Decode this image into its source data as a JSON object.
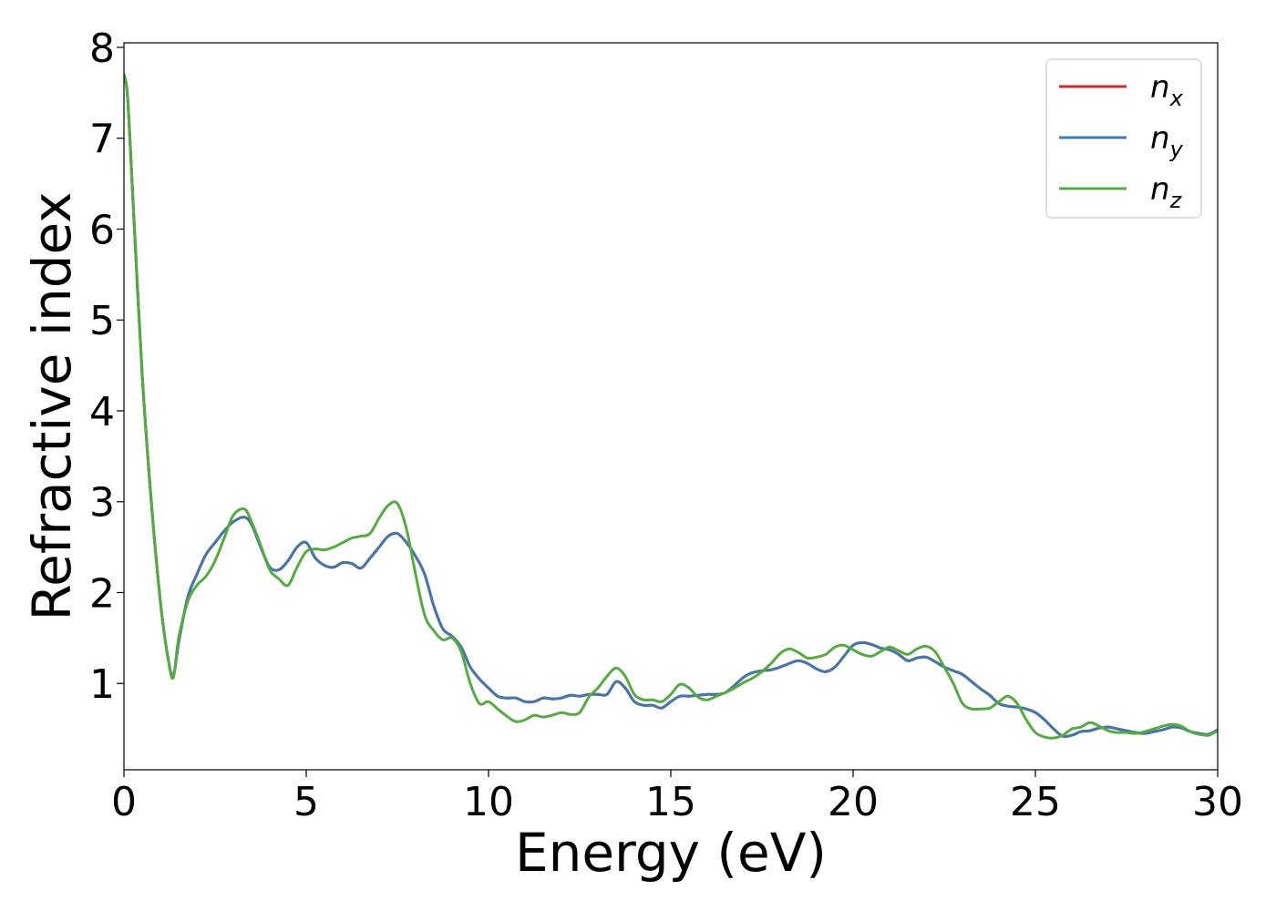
{
  "chart_data": {
    "type": "line",
    "title": "",
    "xlabel": "Energy (eV)",
    "ylabel": "Refractive index",
    "xlim": [
      0,
      30
    ],
    "ylim": [
      0.05,
      8.05
    ],
    "xticks": [
      0,
      5,
      10,
      15,
      20,
      25,
      30
    ],
    "yticks": [
      1,
      2,
      3,
      4,
      5,
      6,
      7,
      8
    ],
    "grid": false,
    "legend_position": "top-right",
    "series": [
      {
        "name": "n",
        "subscript": "x",
        "color": "#d62728",
        "x": [
          0,
          0.1,
          0.25,
          0.5,
          0.75,
          1.0,
          1.2,
          1.35,
          1.5,
          1.75,
          2.0,
          2.25,
          2.5,
          2.75,
          3.0,
          3.3,
          3.5,
          3.75,
          4.0,
          4.25,
          4.5,
          4.75,
          5.0,
          5.25,
          5.5,
          5.75,
          6.0,
          6.25,
          6.5,
          6.75,
          7.0,
          7.25,
          7.5,
          7.75,
          8.0,
          8.25,
          8.5,
          8.75,
          9.0,
          9.25,
          9.5,
          9.75,
          10.0,
          10.25,
          10.5,
          10.75,
          11.0,
          11.25,
          11.5,
          11.75,
          12.0,
          12.25,
          12.5,
          12.75,
          13.0,
          13.25,
          13.5,
          13.75,
          14.0,
          14.25,
          14.5,
          14.75,
          15.0,
          15.25,
          15.5,
          15.75,
          16.0,
          16.25,
          16.5,
          16.75,
          17.0,
          17.25,
          17.5,
          17.75,
          18.0,
          18.25,
          18.5,
          18.75,
          19.0,
          19.25,
          19.5,
          19.75,
          20.0,
          20.25,
          20.5,
          20.75,
          21.0,
          21.25,
          21.5,
          21.75,
          22.0,
          22.25,
          22.5,
          22.75,
          23.0,
          23.25,
          23.5,
          23.75,
          24.0,
          24.25,
          24.5,
          24.75,
          25.0,
          25.25,
          25.5,
          25.75,
          26.0,
          26.25,
          26.5,
          26.75,
          27.0,
          27.25,
          27.5,
          27.75,
          28.0,
          28.25,
          28.5,
          28.75,
          29.0,
          29.25,
          29.5,
          29.75,
          30.0
        ],
        "y": [
          7.7,
          7.45,
          6.3,
          4.4,
          3.0,
          1.9,
          1.3,
          1.08,
          1.45,
          1.95,
          2.2,
          2.42,
          2.55,
          2.68,
          2.78,
          2.83,
          2.75,
          2.5,
          2.28,
          2.25,
          2.35,
          2.5,
          2.55,
          2.38,
          2.3,
          2.28,
          2.33,
          2.32,
          2.27,
          2.38,
          2.5,
          2.62,
          2.65,
          2.55,
          2.4,
          2.2,
          1.85,
          1.6,
          1.52,
          1.4,
          1.18,
          1.05,
          0.95,
          0.86,
          0.84,
          0.84,
          0.8,
          0.8,
          0.84,
          0.83,
          0.84,
          0.87,
          0.86,
          0.88,
          0.88,
          0.88,
          1.02,
          0.95,
          0.8,
          0.76,
          0.76,
          0.73,
          0.8,
          0.86,
          0.86,
          0.87,
          0.88,
          0.88,
          0.9,
          0.98,
          1.07,
          1.12,
          1.14,
          1.15,
          1.18,
          1.22,
          1.25,
          1.22,
          1.16,
          1.13,
          1.18,
          1.3,
          1.42,
          1.45,
          1.43,
          1.39,
          1.37,
          1.32,
          1.25,
          1.28,
          1.29,
          1.24,
          1.18,
          1.14,
          1.1,
          1.02,
          0.94,
          0.87,
          0.78,
          0.75,
          0.74,
          0.72,
          0.68,
          0.6,
          0.5,
          0.42,
          0.43,
          0.47,
          0.48,
          0.51,
          0.52,
          0.5,
          0.48,
          0.46,
          0.45,
          0.47,
          0.49,
          0.52,
          0.51,
          0.47,
          0.45,
          0.44,
          0.49
        ]
      },
      {
        "name": "n",
        "subscript": "y",
        "color": "#4477aa",
        "x": [
          0,
          0.1,
          0.25,
          0.5,
          0.75,
          1.0,
          1.2,
          1.35,
          1.5,
          1.75,
          2.0,
          2.25,
          2.5,
          2.75,
          3.0,
          3.3,
          3.5,
          3.75,
          4.0,
          4.25,
          4.5,
          4.75,
          5.0,
          5.25,
          5.5,
          5.75,
          6.0,
          6.25,
          6.5,
          6.75,
          7.0,
          7.25,
          7.5,
          7.75,
          8.0,
          8.25,
          8.5,
          8.75,
          9.0,
          9.25,
          9.5,
          9.75,
          10.0,
          10.25,
          10.5,
          10.75,
          11.0,
          11.25,
          11.5,
          11.75,
          12.0,
          12.25,
          12.5,
          12.75,
          13.0,
          13.25,
          13.5,
          13.75,
          14.0,
          14.25,
          14.5,
          14.75,
          15.0,
          15.25,
          15.5,
          15.75,
          16.0,
          16.25,
          16.5,
          16.75,
          17.0,
          17.25,
          17.5,
          17.75,
          18.0,
          18.25,
          18.5,
          18.75,
          19.0,
          19.25,
          19.5,
          19.75,
          20.0,
          20.25,
          20.5,
          20.75,
          21.0,
          21.25,
          21.5,
          21.75,
          22.0,
          22.25,
          22.5,
          22.75,
          23.0,
          23.25,
          23.5,
          23.75,
          24.0,
          24.25,
          24.5,
          24.75,
          25.0,
          25.25,
          25.5,
          25.75,
          26.0,
          26.25,
          26.5,
          26.75,
          27.0,
          27.25,
          27.5,
          27.75,
          28.0,
          28.25,
          28.5,
          28.75,
          29.0,
          29.25,
          29.5,
          29.75,
          30.0
        ],
        "y": [
          7.7,
          7.45,
          6.3,
          4.4,
          3.0,
          1.9,
          1.3,
          1.08,
          1.45,
          1.95,
          2.2,
          2.42,
          2.55,
          2.68,
          2.78,
          2.83,
          2.75,
          2.5,
          2.28,
          2.25,
          2.35,
          2.5,
          2.55,
          2.38,
          2.3,
          2.28,
          2.33,
          2.32,
          2.27,
          2.38,
          2.5,
          2.62,
          2.65,
          2.55,
          2.4,
          2.2,
          1.85,
          1.6,
          1.52,
          1.4,
          1.18,
          1.05,
          0.95,
          0.86,
          0.84,
          0.84,
          0.8,
          0.8,
          0.84,
          0.83,
          0.84,
          0.87,
          0.86,
          0.88,
          0.88,
          0.88,
          1.02,
          0.95,
          0.8,
          0.76,
          0.76,
          0.73,
          0.8,
          0.86,
          0.86,
          0.87,
          0.88,
          0.88,
          0.9,
          0.98,
          1.07,
          1.12,
          1.14,
          1.15,
          1.18,
          1.22,
          1.25,
          1.22,
          1.16,
          1.13,
          1.18,
          1.3,
          1.42,
          1.45,
          1.43,
          1.39,
          1.37,
          1.32,
          1.25,
          1.28,
          1.29,
          1.24,
          1.18,
          1.14,
          1.1,
          1.02,
          0.94,
          0.87,
          0.78,
          0.75,
          0.74,
          0.72,
          0.68,
          0.6,
          0.5,
          0.42,
          0.43,
          0.47,
          0.48,
          0.51,
          0.52,
          0.5,
          0.48,
          0.46,
          0.45,
          0.47,
          0.49,
          0.52,
          0.51,
          0.47,
          0.45,
          0.44,
          0.49
        ]
      },
      {
        "name": "n",
        "subscript": "z",
        "color": "#55aa44",
        "x": [
          0,
          0.1,
          0.25,
          0.5,
          0.75,
          1.0,
          1.2,
          1.35,
          1.5,
          1.75,
          2.0,
          2.25,
          2.5,
          2.75,
          3.0,
          3.3,
          3.5,
          3.75,
          4.0,
          4.25,
          4.5,
          4.75,
          5.0,
          5.25,
          5.5,
          5.75,
          6.0,
          6.25,
          6.5,
          6.75,
          7.0,
          7.25,
          7.5,
          7.75,
          8.0,
          8.25,
          8.5,
          8.75,
          9.0,
          9.25,
          9.5,
          9.75,
          10.0,
          10.25,
          10.5,
          10.75,
          11.0,
          11.25,
          11.5,
          11.75,
          12.0,
          12.25,
          12.5,
          12.75,
          13.0,
          13.25,
          13.5,
          13.75,
          14.0,
          14.25,
          14.5,
          14.75,
          15.0,
          15.25,
          15.5,
          15.75,
          16.0,
          16.25,
          16.5,
          16.75,
          17.0,
          17.25,
          17.5,
          17.75,
          18.0,
          18.25,
          18.5,
          18.75,
          19.0,
          19.25,
          19.5,
          19.75,
          20.0,
          20.25,
          20.5,
          20.75,
          21.0,
          21.25,
          21.5,
          21.75,
          22.0,
          22.25,
          22.5,
          22.75,
          23.0,
          23.25,
          23.5,
          23.75,
          24.0,
          24.25,
          24.5,
          24.75,
          25.0,
          25.25,
          25.5,
          25.75,
          26.0,
          26.25,
          26.5,
          26.75,
          27.0,
          27.25,
          27.5,
          27.75,
          28.0,
          28.25,
          28.5,
          28.75,
          29.0,
          29.25,
          29.5,
          29.75,
          30.0
        ],
        "y": [
          7.7,
          7.45,
          6.3,
          4.4,
          3.0,
          1.9,
          1.3,
          1.06,
          1.5,
          1.9,
          2.08,
          2.18,
          2.35,
          2.6,
          2.85,
          2.92,
          2.78,
          2.52,
          2.25,
          2.15,
          2.08,
          2.28,
          2.45,
          2.48,
          2.47,
          2.5,
          2.55,
          2.6,
          2.62,
          2.65,
          2.82,
          2.96,
          2.98,
          2.7,
          2.2,
          1.75,
          1.58,
          1.48,
          1.5,
          1.35,
          1.0,
          0.78,
          0.8,
          0.72,
          0.64,
          0.58,
          0.6,
          0.65,
          0.63,
          0.65,
          0.68,
          0.66,
          0.68,
          0.85,
          0.95,
          1.08,
          1.17,
          1.08,
          0.88,
          0.82,
          0.82,
          0.8,
          0.88,
          0.99,
          0.95,
          0.85,
          0.82,
          0.86,
          0.9,
          0.95,
          1.01,
          1.06,
          1.13,
          1.22,
          1.33,
          1.38,
          1.34,
          1.28,
          1.29,
          1.32,
          1.4,
          1.42,
          1.37,
          1.32,
          1.3,
          1.35,
          1.4,
          1.36,
          1.32,
          1.38,
          1.41,
          1.35,
          1.18,
          1.0,
          0.78,
          0.72,
          0.72,
          0.73,
          0.8,
          0.86,
          0.78,
          0.6,
          0.46,
          0.41,
          0.4,
          0.43,
          0.5,
          0.52,
          0.57,
          0.53,
          0.48,
          0.46,
          0.46,
          0.45,
          0.47,
          0.5,
          0.53,
          0.55,
          0.53,
          0.47,
          0.44,
          0.43,
          0.48
        ]
      }
    ]
  }
}
